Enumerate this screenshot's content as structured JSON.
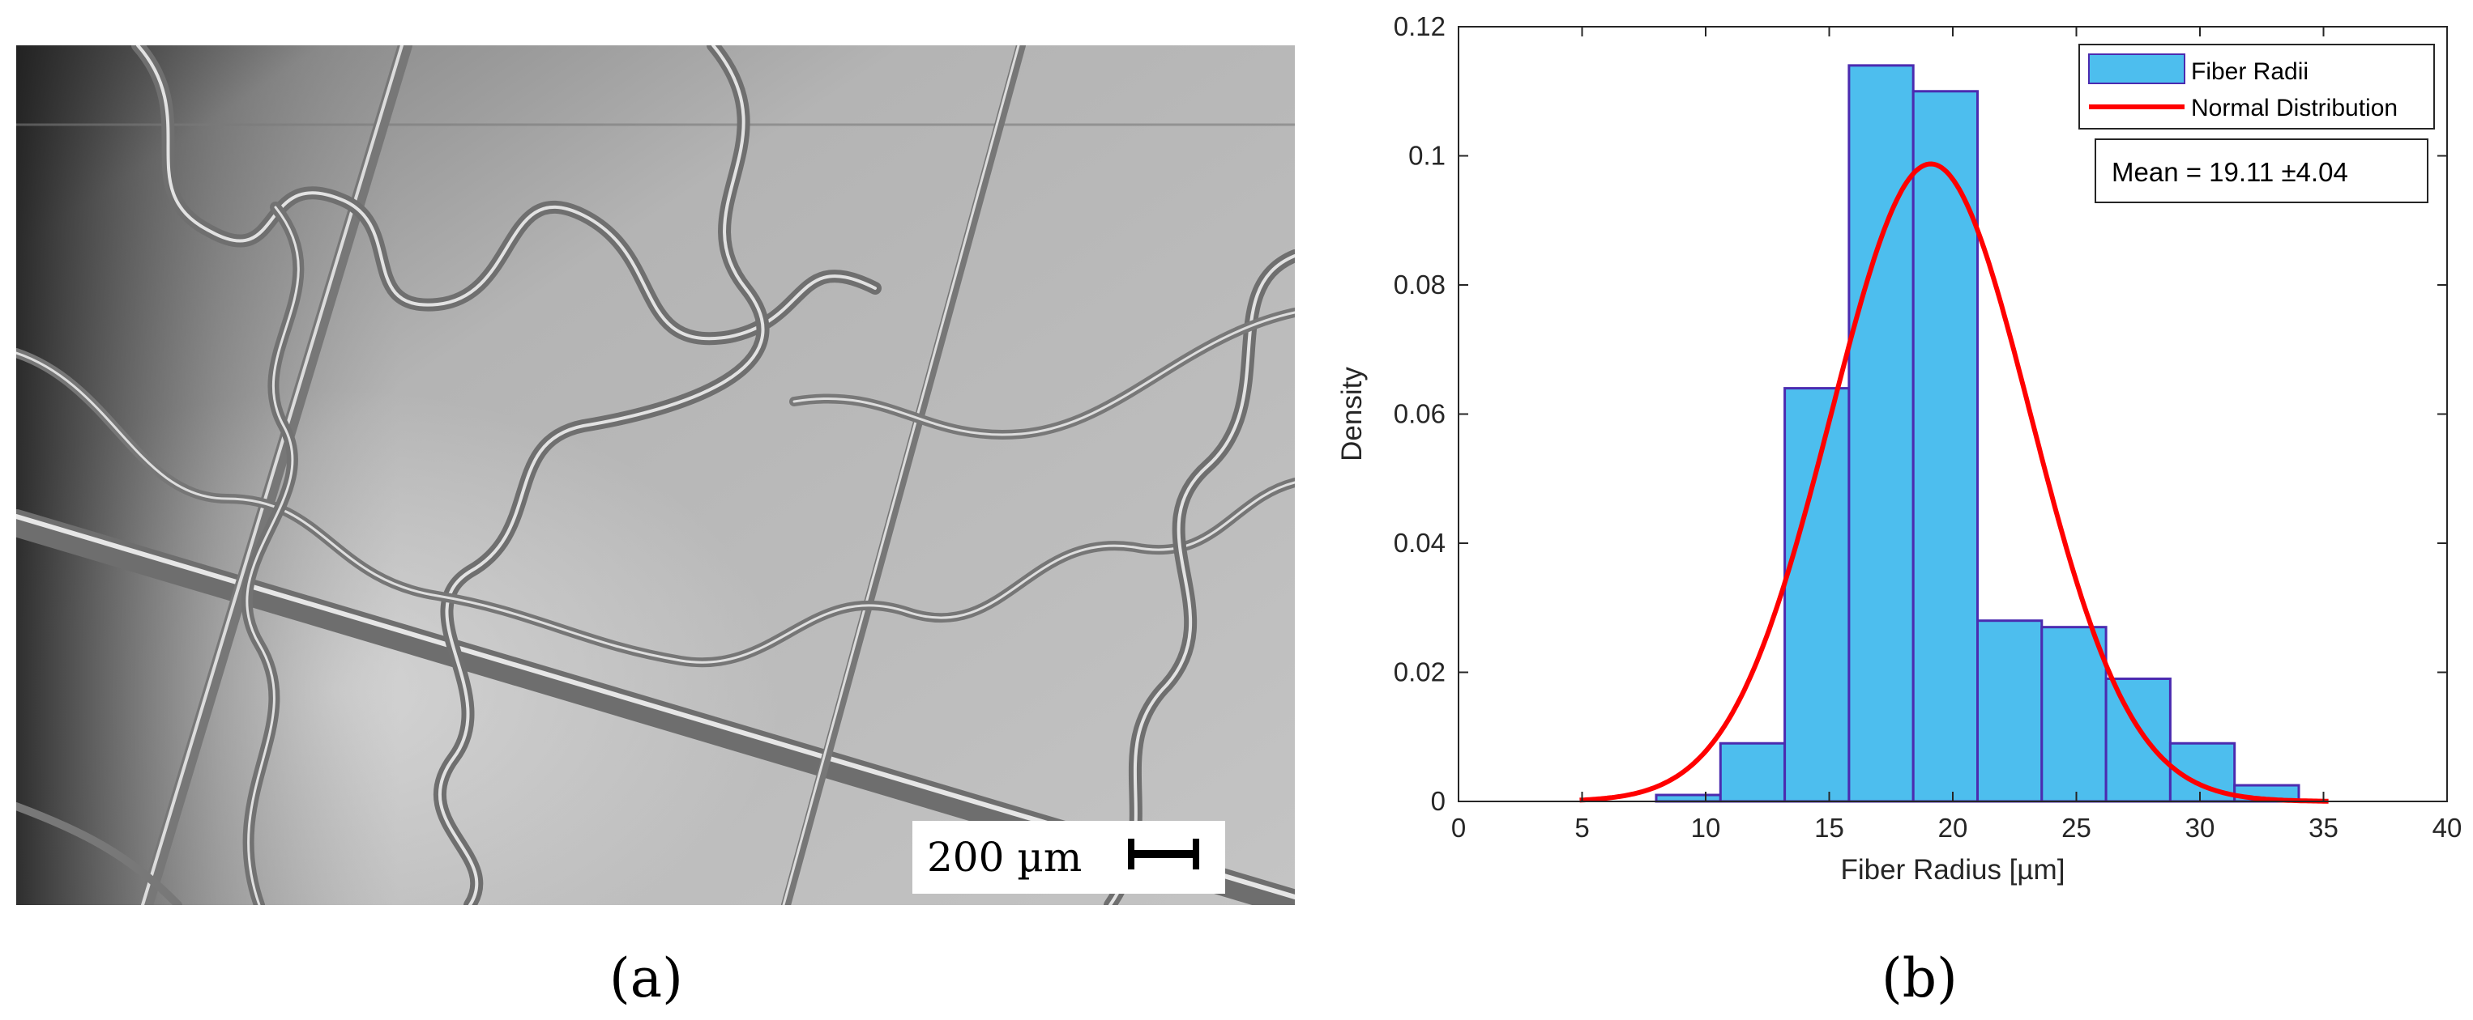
{
  "panel_a": {
    "scale_bar_label": "200 µm",
    "caption": "(a)"
  },
  "panel_b": {
    "caption": "(b)"
  },
  "chart_data": {
    "type": "bar",
    "xlabel": "Fiber Radius [µm]",
    "ylabel": "Density",
    "xlim": [
      0,
      40
    ],
    "ylim": [
      0,
      0.12
    ],
    "xticks": [
      0,
      5,
      10,
      15,
      20,
      25,
      30,
      35,
      40
    ],
    "yticks": [
      0,
      0.02,
      0.04,
      0.06,
      0.08,
      0.1,
      0.12
    ],
    "ytick_labels": [
      "0",
      "0.02",
      "0.04",
      "0.06",
      "0.08",
      "0.1",
      "0.12"
    ],
    "bin_edges": [
      8.0,
      10.6,
      13.2,
      15.8,
      18.4,
      21.0,
      23.6,
      26.2,
      28.8,
      31.4,
      34.0
    ],
    "densities": [
      0.001,
      0.009,
      0.064,
      0.114,
      0.11,
      0.028,
      0.027,
      0.019,
      0.009,
      0.0025
    ],
    "normal_fit": {
      "mean": 19.11,
      "sd": 4.04,
      "x_range": [
        4.9,
        35.2
      ]
    },
    "legend": {
      "position": "top-right",
      "entries": [
        "Fiber Radii",
        "Normal Distribution"
      ]
    },
    "annotation": "Mean = 19.11 ±4.04",
    "colors": {
      "bar_fill": "#4dbeee",
      "bar_edge": "#4b2bb0",
      "curve": "#ff0000"
    },
    "grid": false
  }
}
